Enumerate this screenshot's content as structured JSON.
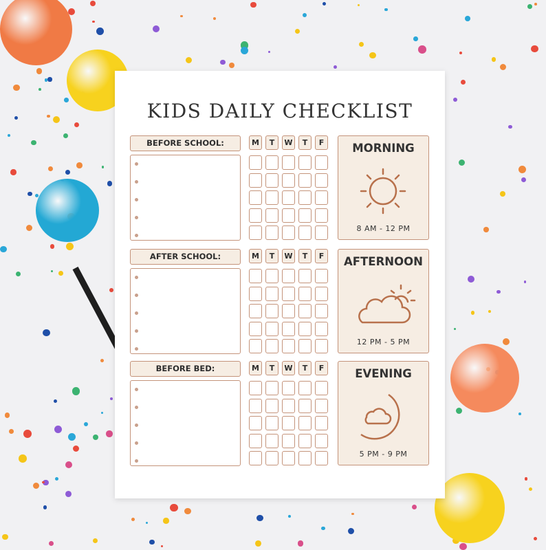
{
  "title": "KIDS DAILY CHECKLIST",
  "days": [
    "M",
    "T",
    "W",
    "T",
    "F"
  ],
  "rows_per_section": 5,
  "colors": {
    "border": "#c4937a",
    "fill": "#f6ede3",
    "icon": "#b8714c",
    "text": "#333333"
  },
  "sections": [
    {
      "label": "BEFORE SCHOOL:",
      "period": "MORNING",
      "time": "8 AM - 12 PM",
      "icon": "sun-icon"
    },
    {
      "label": "AFTER SCHOOL:",
      "period": "AFTERNOON",
      "time": "12 PM - 5 PM",
      "icon": "cloud-sun-icon"
    },
    {
      "label": "BEFORE BED:",
      "period": "EVENING",
      "time": "5 PM - 9 PM",
      "icon": "moon-cloud-icon"
    }
  ]
}
